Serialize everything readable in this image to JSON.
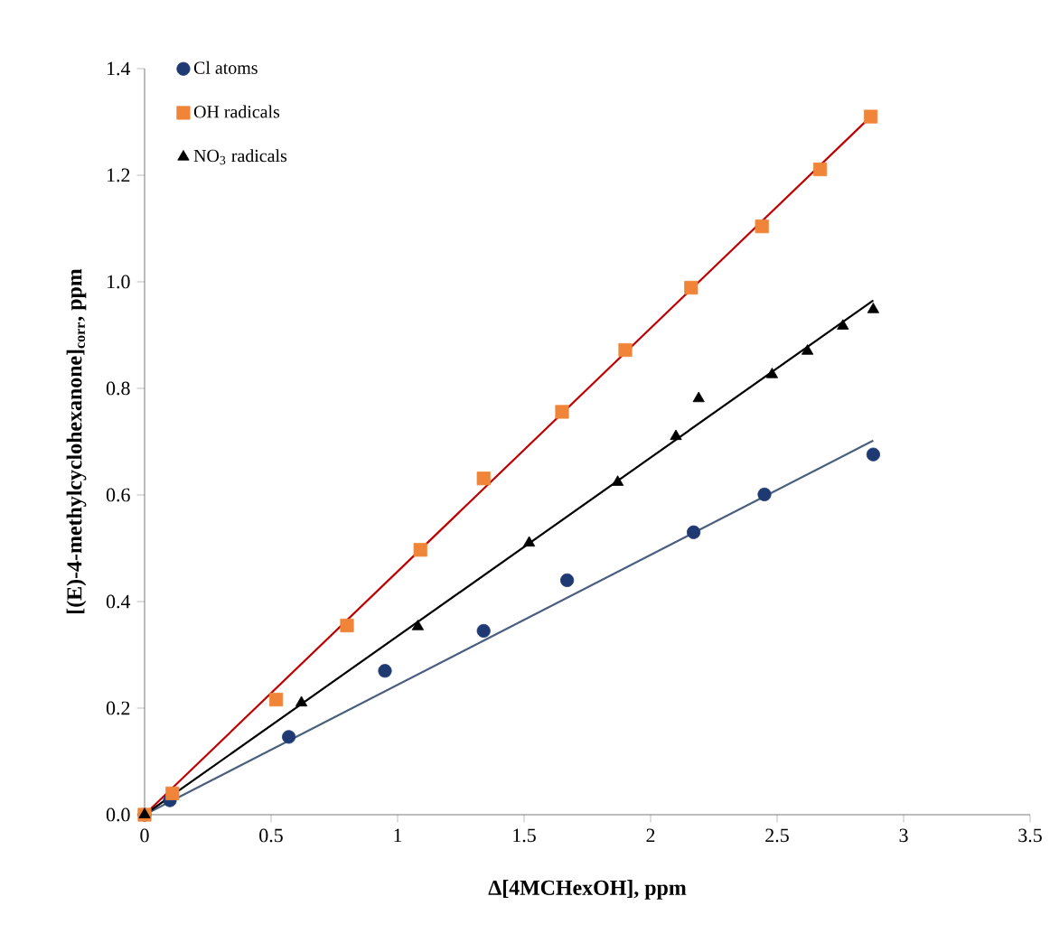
{
  "chart_data": {
    "type": "scatter",
    "xlabel": "**Δ[4MCHexOH], ppm**",
    "ylabel": "**[(E)-4-methylcyclohexanone]$_{corr}$, ppm**",
    "xlim": [
      0,
      3.5
    ],
    "ylim": [
      0,
      1.4
    ],
    "xticks": [
      0,
      0.5,
      1,
      1.5,
      2,
      2.5,
      3,
      3.5
    ],
    "yticks": [
      {
        "value": 0,
        "label": "0.0"
      },
      {
        "value": 0.2,
        "label": "0.2"
      },
      {
        "value": 0.4,
        "label": "0.4"
      },
      {
        "value": 0.6,
        "label": "0.6"
      },
      {
        "value": 0.8,
        "label": "0.8"
      },
      {
        "value": 1.0,
        "label": "1.0"
      },
      {
        "value": 1.2,
        "label": "1.2"
      },
      {
        "value": 1.4,
        "label": "1.4"
      }
    ],
    "grid": false,
    "legend": "top left",
    "series": [
      {
        "name": "Cl atoms",
        "color": "#1f3a73",
        "marker": "circle",
        "x": [
          0,
          0.1,
          0.57,
          0.95,
          1.34,
          1.67,
          2.17,
          2.45,
          2.88
        ],
        "values": [
          0,
          0.027,
          0.146,
          0.27,
          0.345,
          0.44,
          0.53,
          0.601,
          0.676
        ]
      },
      {
        "name": "OH radicals",
        "color": "#f0853a",
        "marker": "square",
        "x": [
          0,
          0.11,
          0.52,
          0.8,
          1.09,
          1.34,
          1.65,
          1.9,
          2.16,
          2.44,
          2.67,
          2.87
        ],
        "values": [
          0,
          0.04,
          0.216,
          0.355,
          0.497,
          0.631,
          0.756,
          0.872,
          0.989,
          1.104,
          1.211,
          1.31
        ]
      },
      {
        "name": "NO$_{3}$ radicals",
        "color": "#000000",
        "marker": "triangle",
        "x": [
          0,
          0.62,
          1.08,
          1.52,
          1.87,
          2.1,
          2.19,
          2.48,
          2.62,
          2.76,
          2.88
        ],
        "values": [
          0,
          0.21,
          0.353,
          0.51,
          0.624,
          0.71,
          0.781,
          0.826,
          0.87,
          0.917,
          0.948
        ]
      },
      {
        "type": "line",
        "color": "#4a5f80",
        "x": [
          0,
          2.88
        ],
        "values": [
          0,
          0.702
        ]
      },
      {
        "type": "line",
        "color": "#c00000",
        "x": [
          0,
          2.87
        ],
        "values": [
          0,
          1.31
        ]
      },
      {
        "type": "line",
        "color": "#000000",
        "x": [
          0,
          2.88
        ],
        "values": [
          0,
          0.965
        ]
      }
    ]
  }
}
